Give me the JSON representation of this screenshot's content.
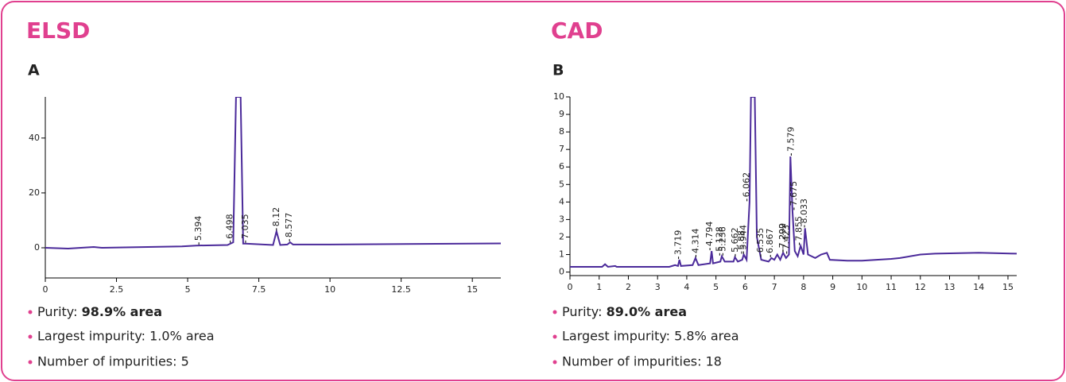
{
  "chart_data": [
    {
      "type": "line",
      "heading": "ELSD",
      "panel": "A",
      "color": "#4b2a9a",
      "xlim": [
        0,
        16
      ],
      "xticks": [
        0,
        2.5,
        5,
        7.5,
        10,
        12.5,
        15
      ],
      "ylim": [
        -11,
        55
      ],
      "yticks": [
        0,
        20,
        40
      ],
      "x": [
        0,
        0.8,
        1.7,
        2,
        4.8,
        5.3,
        6.4,
        6.6,
        6.7,
        6.86,
        6.95,
        7.035,
        8.0,
        8.12,
        8.25,
        8.5,
        8.6,
        8.7,
        10,
        16
      ],
      "values": [
        0,
        -0.3,
        0.3,
        0,
        0.5,
        0.8,
        1,
        2,
        55,
        55,
        1.5,
        1.5,
        1,
        6,
        1,
        1.2,
        2,
        1.2,
        1.2,
        1.6
      ],
      "peak_labels": [
        5.394,
        6.498,
        7.035,
        8.12,
        8.577
      ],
      "purity_label": "Purity:",
      "purity_value": "98.9% area",
      "largest_impurity": "Largest impurity: 1.0% area",
      "impurities": "Number of impurities: 5"
    },
    {
      "type": "line",
      "heading": "CAD",
      "panel": "B",
      "color": "#4b2a9a",
      "xlim": [
        0,
        15.3
      ],
      "xticks": [
        0,
        1,
        2,
        3,
        4,
        5,
        6,
        7,
        8,
        9,
        10,
        11,
        12,
        13,
        14,
        15
      ],
      "ylim": [
        -0.2,
        10
      ],
      "yticks": [
        0,
        1,
        2,
        3,
        4,
        5,
        6,
        7,
        8,
        9,
        10
      ],
      "x": [
        0,
        1.1,
        1.2,
        1.3,
        1.55,
        1.6,
        3.4,
        3.6,
        3.7,
        3.75,
        3.8,
        4.2,
        4.3,
        4.4,
        4.8,
        4.85,
        4.9,
        5.15,
        5.2,
        5.3,
        5.6,
        5.65,
        5.75,
        5.9,
        5.95,
        6.05,
        6.15,
        6.2,
        6.33,
        6.4,
        6.55,
        6.8,
        6.9,
        7.0,
        7.1,
        7.2,
        7.3,
        7.4,
        7.5,
        7.55,
        7.62,
        7.7,
        7.8,
        7.9,
        8.0,
        8.05,
        8.15,
        8.4,
        8.6,
        8.8,
        8.9,
        9.5,
        10,
        11,
        11.3,
        12,
        12.5,
        14,
        15.3
      ],
      "values": [
        0.3,
        0.3,
        0.45,
        0.3,
        0.35,
        0.3,
        0.3,
        0.4,
        0.35,
        0.7,
        0.35,
        0.4,
        0.8,
        0.4,
        0.5,
        1.2,
        0.5,
        0.6,
        0.9,
        0.6,
        0.6,
        0.85,
        0.6,
        0.7,
        1.0,
        0.7,
        4,
        10,
        10,
        2,
        0.7,
        0.6,
        0.8,
        0.7,
        1.0,
        0.7,
        1.1,
        0.8,
        1.0,
        6.6,
        3.5,
        1.2,
        0.9,
        1.5,
        1.0,
        2.5,
        1.0,
        0.8,
        1.0,
        1.1,
        0.7,
        0.65,
        0.65,
        0.75,
        0.8,
        1.0,
        1.05,
        1.1,
        1.05
      ],
      "peak_labels": [
        3.719,
        4.314,
        4.794,
        5.128,
        5.236,
        5.662,
        5.88,
        5.944,
        6.062,
        6.535,
        6.867,
        7.292,
        7.299,
        7.579,
        7.423,
        7.675,
        7.855,
        8.033
      ],
      "purity_label": "Purity:",
      "purity_value": "89.0% area",
      "largest_impurity": "Largest impurity: 5.8% area",
      "impurities": "Number of impurities: 18"
    }
  ]
}
